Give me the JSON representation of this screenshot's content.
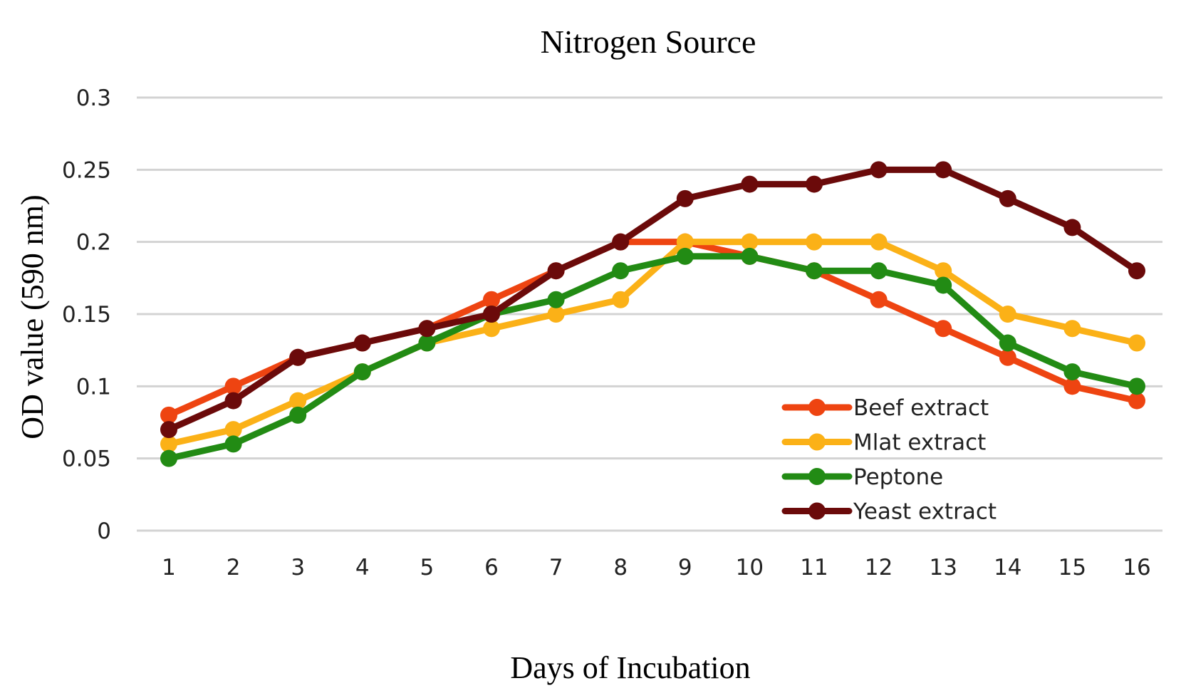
{
  "chart_data": {
    "type": "line",
    "title": "Nitrogen Source",
    "xlabel": "Days of Incubation",
    "ylabel": "OD value (590 nm)",
    "categories": [
      "1",
      "2",
      "3",
      "4",
      "5",
      "6",
      "7",
      "8",
      "9",
      "10",
      "11",
      "12",
      "13",
      "14",
      "15",
      "16"
    ],
    "ylim": [
      0,
      0.3
    ],
    "yticks": [
      "0",
      "0.05",
      "0.1",
      "0.15",
      "0.2",
      "0.25",
      "0.3"
    ],
    "grid": true,
    "legend_position": "lower-right",
    "series": [
      {
        "name": "Beef extract",
        "color": "#ee4411",
        "values": [
          0.08,
          0.1,
          0.12,
          0.13,
          0.14,
          0.16,
          0.18,
          0.2,
          0.2,
          0.19,
          0.18,
          0.16,
          0.14,
          0.12,
          0.1,
          0.09
        ]
      },
      {
        "name": "Mlat extract",
        "color": "#fbb117",
        "values": [
          0.06,
          0.07,
          0.09,
          0.11,
          0.13,
          0.14,
          0.15,
          0.16,
          0.2,
          0.2,
          0.2,
          0.2,
          0.18,
          0.15,
          0.14,
          0.13
        ]
      },
      {
        "name": "Peptone",
        "color": "#228b14",
        "values": [
          0.05,
          0.06,
          0.08,
          0.11,
          0.13,
          0.15,
          0.16,
          0.18,
          0.19,
          0.19,
          0.18,
          0.18,
          0.17,
          0.13,
          0.11,
          0.1
        ]
      },
      {
        "name": "Yeast extract",
        "color": "#6b0a0a",
        "values": [
          0.07,
          0.09,
          0.12,
          0.13,
          0.14,
          0.15,
          0.18,
          0.2,
          0.23,
          0.24,
          0.24,
          0.25,
          0.25,
          0.23,
          0.21,
          0.18
        ]
      }
    ]
  }
}
